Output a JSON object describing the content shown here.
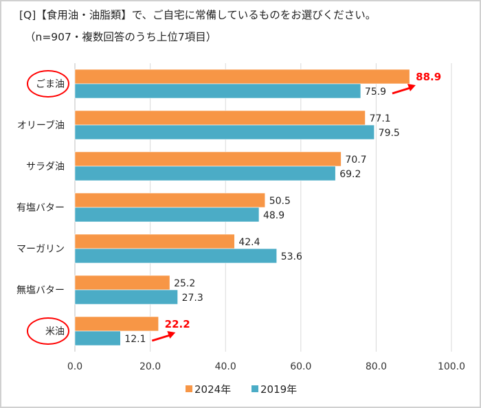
{
  "header": {
    "title": "[Q]【食用油・油脂類】で、ご自宅に常備しているものをお選びください。",
    "subtitle": "（n=907・複数回答のうち上位7項目）"
  },
  "chart_data": {
    "type": "bar",
    "orientation": "horizontal",
    "categories": [
      "ごま油",
      "オリーブ油",
      "サラダ油",
      "有塩バター",
      "マーガリン",
      "無塩バター",
      "米油"
    ],
    "series": [
      {
        "name": "2024年",
        "color": "#F79646",
        "values": [
          88.9,
          77.1,
          70.7,
          50.5,
          42.4,
          25.2,
          22.2
        ]
      },
      {
        "name": "2019年",
        "color": "#4BACC6",
        "values": [
          75.9,
          79.5,
          69.2,
          48.9,
          53.6,
          27.3,
          12.1
        ]
      }
    ],
    "xlim": [
      0,
      100
    ],
    "xticks": [
      "0.0",
      "20.0",
      "40.0",
      "60.0",
      "80.0",
      "100.0"
    ],
    "grid": true,
    "legend_position": "bottom",
    "highlighted_categories": [
      "ごま油",
      "米油"
    ],
    "highlight_color": "#FF0000"
  }
}
